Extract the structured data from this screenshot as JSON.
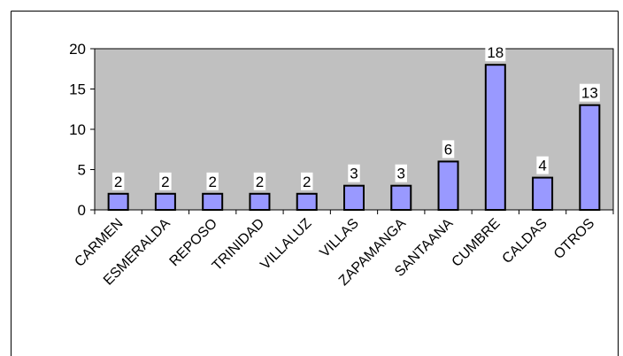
{
  "chart_data": {
    "type": "bar",
    "categories": [
      "CARMEN",
      "ESMERALDA",
      "REPOSO",
      "TRINIDAD",
      "VILLALUZ",
      "VILLAS",
      "ZAPAMANGA",
      "SANTAANA",
      "CUMBRE",
      "CALDAS",
      "OTROS"
    ],
    "values": [
      2,
      2,
      2,
      2,
      2,
      3,
      3,
      6,
      18,
      4,
      13
    ],
    "color": "#9999ff",
    "plot_background": "#c0c0c0",
    "ylim": [
      0,
      20
    ],
    "yticks": [
      0,
      5,
      10,
      15,
      20
    ],
    "grid": false
  }
}
